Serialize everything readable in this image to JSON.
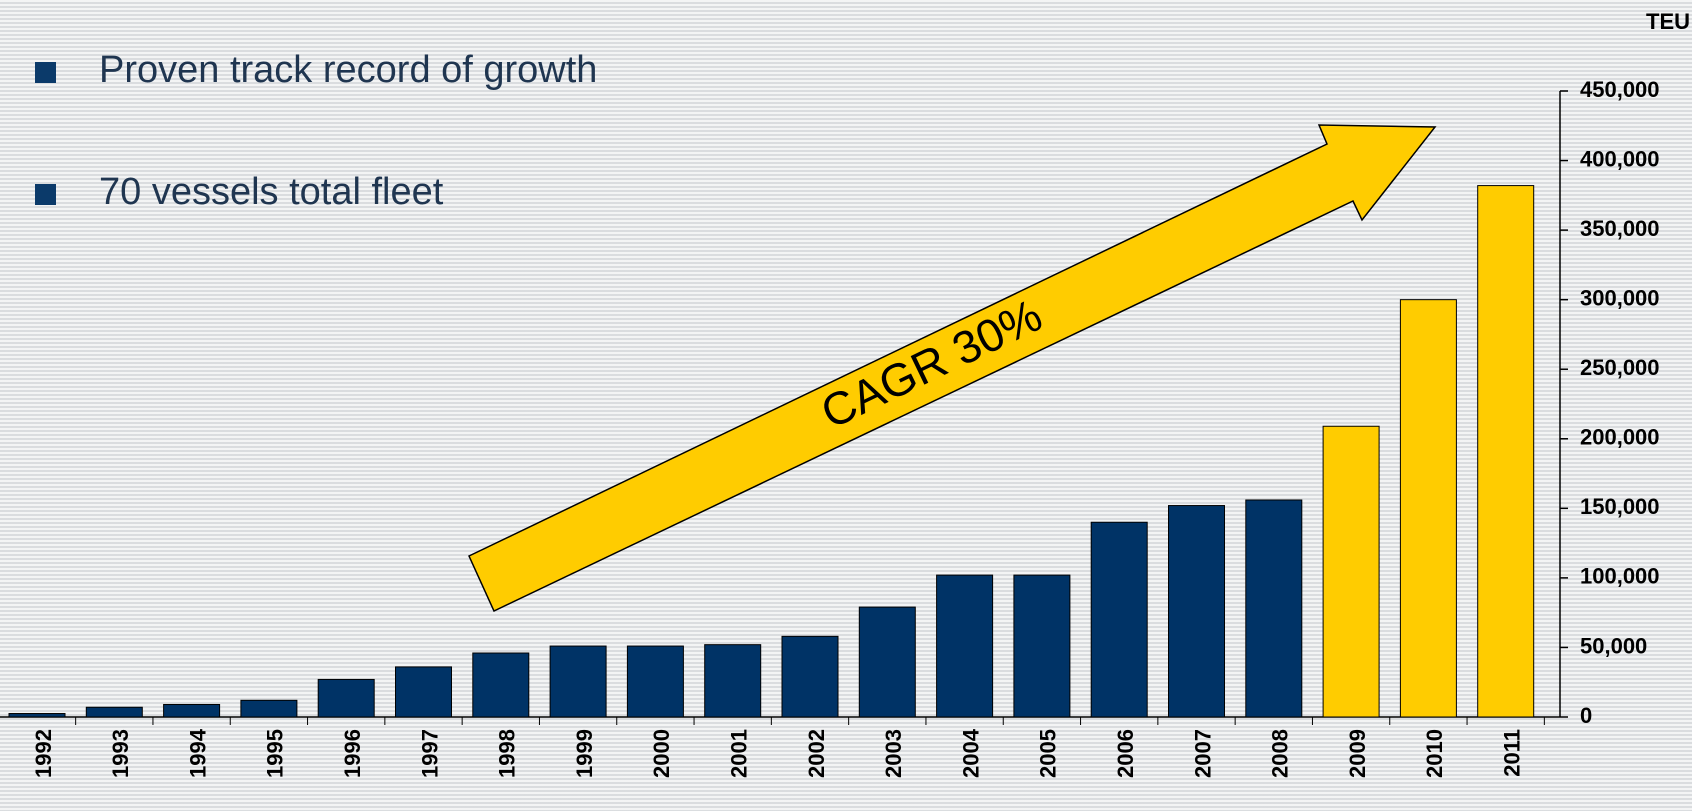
{
  "chart_data": {
    "type": "bar",
    "bullets": [
      "Proven track record of growth",
      "70 vessels total fleet"
    ],
    "ylabel": "TEU",
    "annotation": "CAGR 30%",
    "categories": [
      "1992",
      "1993",
      "1994",
      "1995",
      "1996",
      "1997",
      "1998",
      "1999",
      "2000",
      "2001",
      "2002",
      "2003",
      "2004",
      "2005",
      "2006",
      "2007",
      "2008",
      "2009",
      "2010",
      "2011"
    ],
    "values": [
      2500,
      7000,
      9000,
      12000,
      27000,
      36000,
      46000,
      51000,
      51000,
      52000,
      58000,
      79000,
      102000,
      102000,
      140000,
      152000,
      156000,
      209000,
      300000,
      382000
    ],
    "colors": [
      "#003366",
      "#003366",
      "#003366",
      "#003366",
      "#003366",
      "#003366",
      "#003366",
      "#003366",
      "#003366",
      "#003366",
      "#003366",
      "#003366",
      "#003366",
      "#003366",
      "#003366",
      "#003366",
      "#003366",
      "#ffcc00",
      "#ffcc00",
      "#ffcc00"
    ],
    "ylim": [
      0,
      450000
    ],
    "yticks": [
      0,
      {
        "value": 50000,
        "label": "50,000"
      },
      {
        "value": 100000,
        "label": "100,000"
      },
      {
        "value": 150000,
        "label": "150,000"
      },
      {
        "value": 200000,
        "label": "200,000"
      },
      {
        "value": 250000,
        "label": "250,000"
      },
      {
        "value": 300000,
        "label": "300,000"
      },
      {
        "value": 350000,
        "label": "350,000"
      },
      {
        "value": 400000,
        "label": "400,000"
      },
      {
        "value": 450000,
        "label": "450,000"
      }
    ]
  }
}
